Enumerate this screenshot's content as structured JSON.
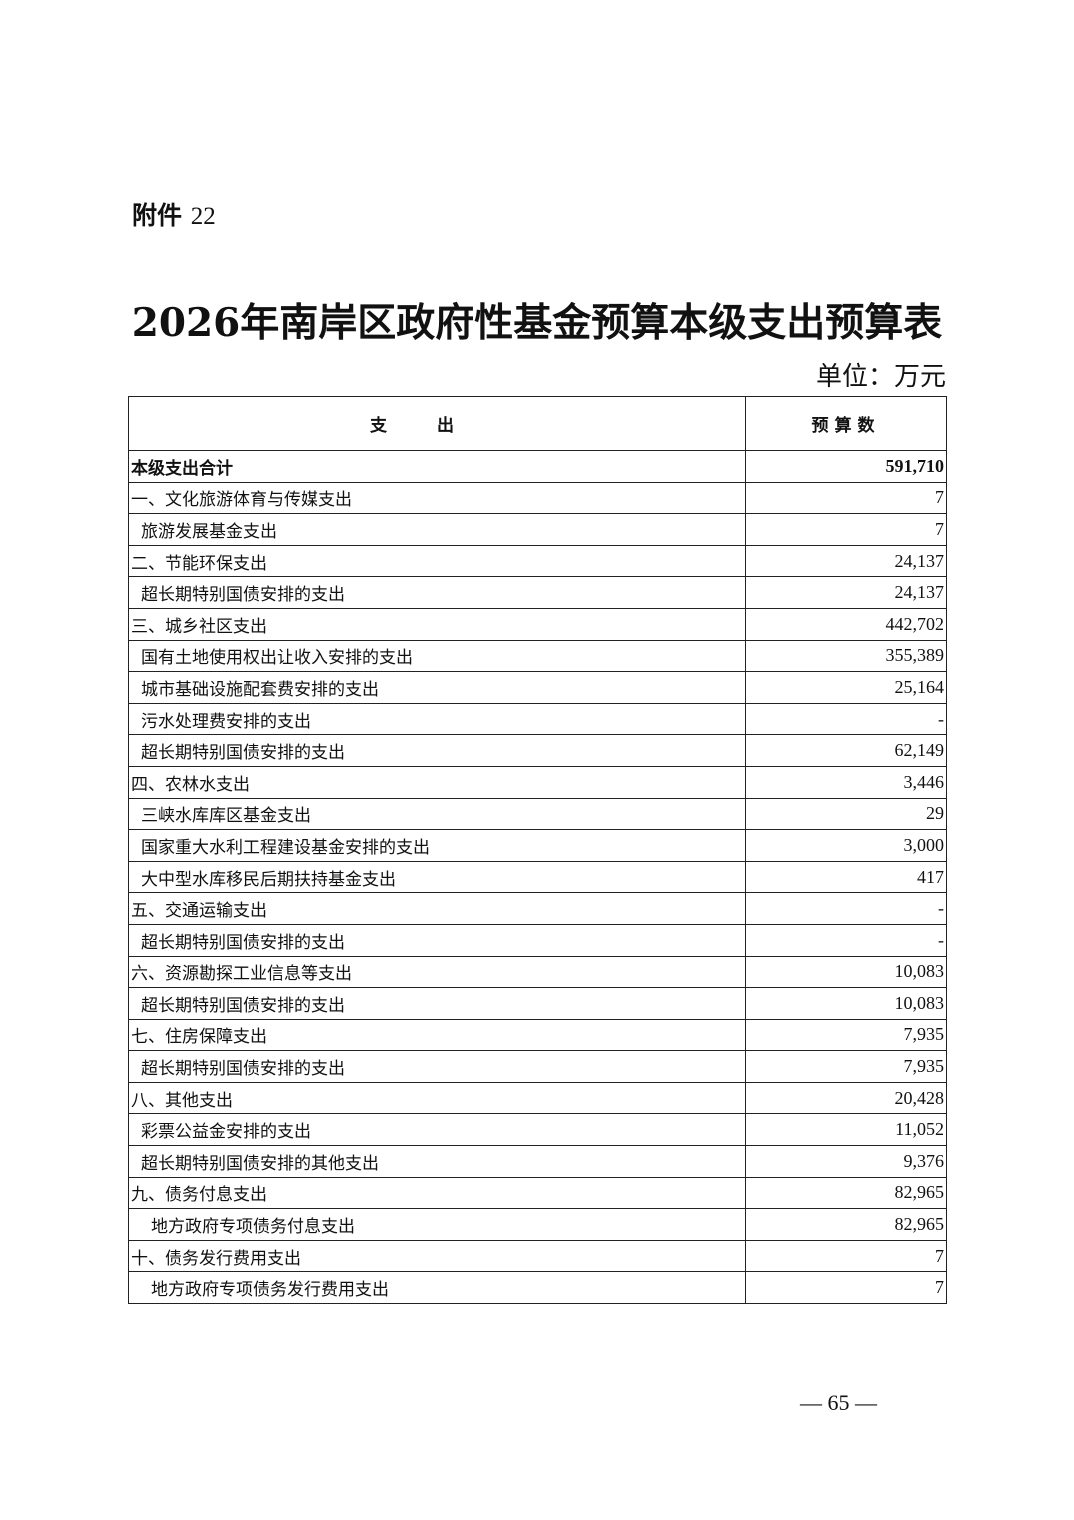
{
  "attachment": {
    "label": "附件",
    "number": "22"
  },
  "title": "2026年南岸区政府性基金预算本级支出预算表",
  "unit": "单位：万元",
  "table": {
    "headers": [
      "支出",
      "预算数"
    ],
    "rows": [
      {
        "name": "本级支出合计",
        "amount": "591,710",
        "level": "total"
      },
      {
        "name": "一、文化旅游体育与传媒支出",
        "amount": "7",
        "level": 0
      },
      {
        "name": "旅游发展基金支出",
        "amount": "7",
        "level": 1
      },
      {
        "name": "二、节能环保支出",
        "amount": "24,137",
        "level": 0
      },
      {
        "name": "超长期特别国债安排的支出",
        "amount": "24,137",
        "level": 1
      },
      {
        "name": "三、城乡社区支出",
        "amount": "442,702",
        "level": 0
      },
      {
        "name": "国有土地使用权出让收入安排的支出",
        "amount": "355,389",
        "level": 1
      },
      {
        "name": "城市基础设施配套费安排的支出",
        "amount": "25,164",
        "level": 1
      },
      {
        "name": "污水处理费安排的支出",
        "amount": "-",
        "level": 1
      },
      {
        "name": "超长期特别国债安排的支出",
        "amount": "62,149",
        "level": 1
      },
      {
        "name": "四、农林水支出",
        "amount": "3,446",
        "level": 0
      },
      {
        "name": "三峡水库库区基金支出",
        "amount": "29",
        "level": 1
      },
      {
        "name": "国家重大水利工程建设基金安排的支出",
        "amount": "3,000",
        "level": 1
      },
      {
        "name": "大中型水库移民后期扶持基金支出",
        "amount": "417",
        "level": 1
      },
      {
        "name": "五、交通运输支出",
        "amount": "-",
        "level": 0
      },
      {
        "name": "超长期特别国债安排的支出",
        "amount": "-",
        "level": 1
      },
      {
        "name": "六、资源勘探工业信息等支出",
        "amount": "10,083",
        "level": 0
      },
      {
        "name": "超长期特别国债安排的支出",
        "amount": "10,083",
        "level": 1
      },
      {
        "name": "七、住房保障支出",
        "amount": "7,935",
        "level": 0
      },
      {
        "name": "超长期特别国债安排的支出",
        "amount": "7,935",
        "level": 1
      },
      {
        "name": "八、其他支出",
        "amount": "20,428",
        "level": 0
      },
      {
        "name": "彩票公益金安排的支出",
        "amount": "11,052",
        "level": 1
      },
      {
        "name": "超长期特别国债安排的其他支出",
        "amount": "9,376",
        "level": 1
      },
      {
        "name": "九、债务付息支出",
        "amount": "82,965",
        "level": 0
      },
      {
        "name": "地方政府专项债务付息支出",
        "amount": "82,965",
        "level": 2
      },
      {
        "name": "十、债务发行费用支出",
        "amount": "7",
        "level": 0
      },
      {
        "name": "地方政府专项债务发行费用支出",
        "amount": "7",
        "level": 2
      }
    ]
  },
  "page_number": "— 65 —"
}
